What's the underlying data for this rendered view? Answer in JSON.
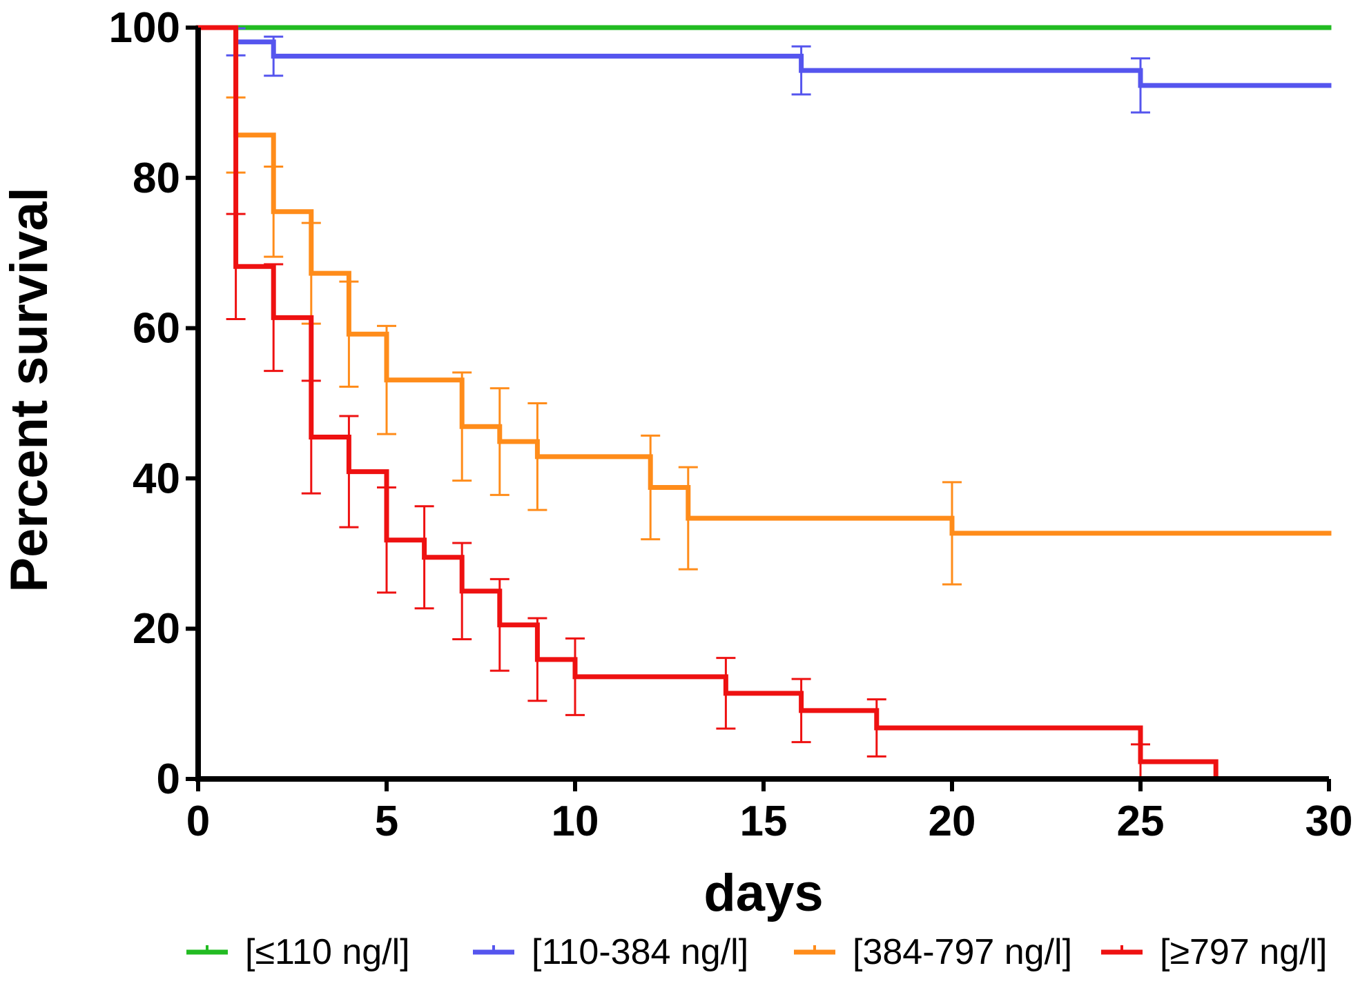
{
  "chart_data": {
    "type": "line",
    "subtype": "kaplan-meier step survival curve with error bars",
    "title": "",
    "xlabel": "days",
    "ylabel": "Percent survival",
    "xlim": [
      0,
      30
    ],
    "ylim": [
      0,
      100
    ],
    "xticks": [
      0,
      5,
      10,
      15,
      20,
      25,
      30
    ],
    "yticks": [
      0,
      20,
      40,
      60,
      80,
      100
    ],
    "grid": false,
    "legend_position": "bottom",
    "series": [
      {
        "name": "[≤110 ng/l]",
        "color": "#22bb22",
        "steps": [
          [
            0,
            100
          ],
          [
            30,
            100
          ]
        ],
        "errors": []
      },
      {
        "name": "[110-384 ng/l]",
        "color": "#5555ee",
        "steps": [
          [
            0,
            100
          ],
          [
            1,
            98.1
          ],
          [
            2,
            96.2
          ],
          [
            16,
            94.3
          ],
          [
            25,
            92.3
          ],
          [
            30,
            92.3
          ]
        ],
        "errors": [
          [
            1,
            96.3,
            99.9
          ],
          [
            2,
            93.6,
            98.8
          ],
          [
            16,
            91.1,
            97.5
          ],
          [
            25,
            88.7,
            95.9
          ]
        ]
      },
      {
        "name": "[384-797 ng/l]",
        "color": "#ff8c1a",
        "steps": [
          [
            0,
            100
          ],
          [
            1,
            85.7
          ],
          [
            2,
            75.5
          ],
          [
            3,
            67.3
          ],
          [
            4,
            59.2
          ],
          [
            5,
            53.1
          ],
          [
            7,
            46.9
          ],
          [
            8,
            44.9
          ],
          [
            9,
            42.9
          ],
          [
            12,
            38.8
          ],
          [
            13,
            34.7
          ],
          [
            20,
            32.7
          ],
          [
            30,
            32.7
          ]
        ],
        "errors": [
          [
            1,
            80.7,
            90.7
          ],
          [
            2,
            69.5,
            81.5
          ],
          [
            3,
            60.6,
            74.0
          ],
          [
            4,
            52.2,
            66.2
          ],
          [
            5,
            45.9,
            60.3
          ],
          [
            7,
            39.7,
            54.1
          ],
          [
            8,
            37.8,
            52.0
          ],
          [
            9,
            35.8,
            50.0
          ],
          [
            12,
            31.9,
            45.7
          ],
          [
            13,
            27.9,
            41.5
          ],
          [
            20,
            25.9,
            39.5
          ]
        ]
      },
      {
        "name": "[≥797 ng/l]",
        "color": "#ee1111",
        "steps": [
          [
            0,
            100
          ],
          [
            1,
            68.2
          ],
          [
            2,
            61.4
          ],
          [
            3,
            45.5
          ],
          [
            4,
            40.9
          ],
          [
            5,
            31.8
          ],
          [
            6,
            29.5
          ],
          [
            7,
            25.0
          ],
          [
            8,
            20.5
          ],
          [
            9,
            15.9
          ],
          [
            10,
            13.6
          ],
          [
            14,
            11.4
          ],
          [
            16,
            9.1
          ],
          [
            18,
            6.8
          ],
          [
            25,
            2.3
          ],
          [
            27,
            0
          ]
        ],
        "errors": [
          [
            1,
            61.2,
            75.2
          ],
          [
            2,
            54.3,
            68.5
          ],
          [
            3,
            38.0,
            53.0
          ],
          [
            4,
            33.5,
            48.3
          ],
          [
            5,
            24.8,
            38.8
          ],
          [
            6,
            22.7,
            36.3
          ],
          [
            7,
            18.6,
            31.4
          ],
          [
            8,
            14.4,
            26.6
          ],
          [
            9,
            10.4,
            21.4
          ],
          [
            10,
            8.5,
            18.7
          ],
          [
            14,
            6.7,
            16.1
          ],
          [
            16,
            4.9,
            13.3
          ],
          [
            18,
            3.0,
            10.6
          ],
          [
            25,
            0.0,
            4.6
          ]
        ]
      }
    ]
  }
}
